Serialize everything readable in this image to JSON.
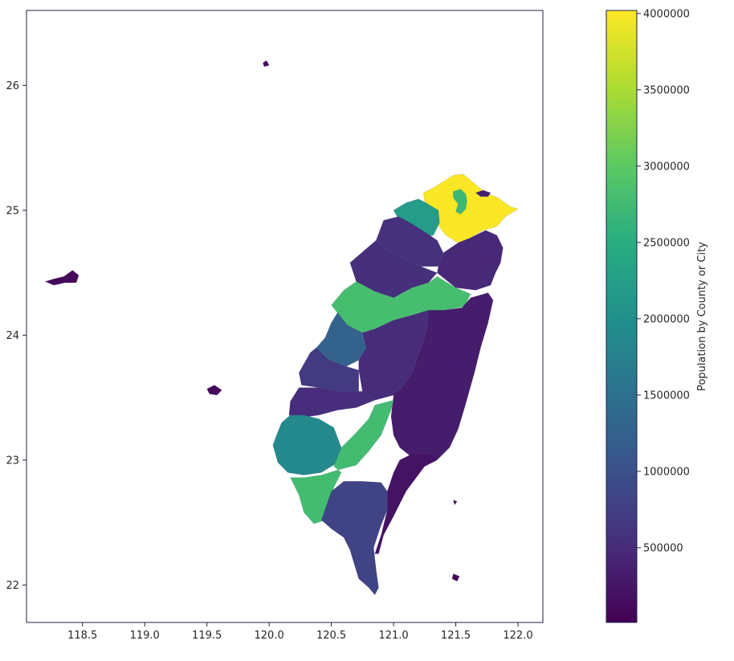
{
  "chart_data": {
    "type": "choropleth",
    "xlim": [
      118.05,
      122.2
    ],
    "ylim": [
      21.7,
      26.6
    ],
    "xticks": [
      "118.5",
      "119.0",
      "119.5",
      "120.0",
      "120.5",
      "121.0",
      "121.5",
      "122.0"
    ],
    "yticks": [
      "22",
      "23",
      "24",
      "25",
      "26"
    ],
    "colorbar": {
      "label": "Population by County or City",
      "range": [
        10000,
        4020000
      ],
      "ticks": [
        "500000",
        "1000000",
        "1500000",
        "2000000",
        "2500000",
        "3000000",
        "3500000",
        "4000000"
      ],
      "colormap": "viridis"
    },
    "regions": [
      {
        "value": 4000000,
        "ring": [
          [
            121.4,
            25.23
          ],
          [
            121.48,
            25.28
          ],
          [
            121.56,
            25.29
          ],
          [
            121.62,
            25.24
          ],
          [
            121.74,
            25.14
          ],
          [
            121.84,
            25.1
          ],
          [
            121.94,
            25.03
          ],
          [
            122.0,
            25.01
          ],
          [
            121.9,
            24.95
          ],
          [
            121.83,
            24.87
          ],
          [
            121.72,
            24.84
          ],
          [
            121.62,
            24.78
          ],
          [
            121.52,
            24.74
          ],
          [
            121.42,
            24.8
          ],
          [
            121.36,
            24.88
          ],
          [
            121.35,
            24.99
          ],
          [
            121.25,
            25.07
          ],
          [
            121.24,
            25.14
          ],
          [
            121.32,
            25.18
          ]
        ]
      },
      {
        "value": 2700000,
        "ring": [
          [
            121.48,
            25.15
          ],
          [
            121.54,
            25.17
          ],
          [
            121.58,
            25.13
          ],
          [
            121.59,
            25.07
          ],
          [
            121.58,
            25.01
          ],
          [
            121.54,
            24.97
          ],
          [
            121.5,
            24.99
          ],
          [
            121.52,
            25.05
          ],
          [
            121.48,
            25.1
          ]
        ]
      },
      {
        "value": 380000,
        "ring": [
          [
            121.66,
            25.14
          ],
          [
            121.72,
            25.16
          ],
          [
            121.78,
            25.14
          ],
          [
            121.76,
            25.11
          ],
          [
            121.7,
            25.11
          ]
        ]
      },
      {
        "value": 2200000,
        "ring": [
          [
            121.0,
            25.0
          ],
          [
            121.1,
            25.06
          ],
          [
            121.2,
            25.09
          ],
          [
            121.26,
            25.06
          ],
          [
            121.36,
            25.0
          ],
          [
            121.37,
            24.9
          ],
          [
            121.32,
            24.8
          ],
          [
            121.26,
            24.79
          ],
          [
            121.15,
            24.87
          ],
          [
            121.04,
            24.93
          ]
        ]
      },
      {
        "value": 560000,
        "ring": [
          [
            120.92,
            24.92
          ],
          [
            121.04,
            24.95
          ],
          [
            121.15,
            24.89
          ],
          [
            121.26,
            24.82
          ],
          [
            121.35,
            24.76
          ],
          [
            121.4,
            24.66
          ],
          [
            121.36,
            24.55
          ],
          [
            121.22,
            24.55
          ],
          [
            121.1,
            24.6
          ],
          [
            120.96,
            24.68
          ],
          [
            120.86,
            24.76
          ]
        ]
      },
      {
        "value": 460000,
        "ring": [
          [
            121.4,
            24.66
          ],
          [
            121.52,
            24.74
          ],
          [
            121.62,
            24.78
          ],
          [
            121.74,
            24.84
          ],
          [
            121.83,
            24.8
          ],
          [
            121.88,
            24.7
          ],
          [
            121.86,
            24.58
          ],
          [
            121.82,
            24.5
          ],
          [
            121.78,
            24.4
          ],
          [
            121.66,
            24.36
          ],
          [
            121.5,
            24.38
          ],
          [
            121.35,
            24.5
          ],
          [
            121.36,
            24.55
          ]
        ]
      },
      {
        "value": 550000,
        "ring": [
          [
            120.65,
            24.58
          ],
          [
            120.86,
            24.76
          ],
          [
            120.96,
            24.68
          ],
          [
            121.1,
            24.6
          ],
          [
            121.22,
            24.55
          ],
          [
            121.35,
            24.5
          ],
          [
            121.28,
            24.42
          ],
          [
            121.15,
            24.38
          ],
          [
            121.0,
            24.3
          ],
          [
            120.85,
            24.35
          ],
          [
            120.7,
            24.43
          ]
        ]
      },
      {
        "value": 2800000,
        "ring": [
          [
            120.5,
            24.24
          ],
          [
            120.6,
            24.36
          ],
          [
            120.7,
            24.43
          ],
          [
            120.85,
            24.35
          ],
          [
            121.0,
            24.3
          ],
          [
            121.15,
            24.38
          ],
          [
            121.28,
            24.42
          ],
          [
            121.35,
            24.47
          ],
          [
            121.5,
            24.38
          ],
          [
            121.62,
            24.33
          ],
          [
            121.57,
            24.23
          ],
          [
            121.4,
            24.2
          ],
          [
            121.15,
            24.16
          ],
          [
            121.0,
            24.12
          ],
          [
            120.85,
            24.05
          ],
          [
            120.75,
            24.02
          ],
          [
            120.63,
            24.08
          ]
        ]
      },
      {
        "value": 1280000,
        "ring": [
          [
            120.45,
            23.98
          ],
          [
            120.5,
            24.1
          ],
          [
            120.55,
            24.18
          ],
          [
            120.63,
            24.08
          ],
          [
            120.75,
            24.02
          ],
          [
            120.78,
            23.9
          ],
          [
            120.72,
            23.8
          ],
          [
            120.62,
            23.75
          ],
          [
            120.48,
            23.8
          ],
          [
            120.38,
            23.9
          ]
        ]
      },
      {
        "value": 500000,
        "ring": [
          [
            120.78,
            23.9
          ],
          [
            120.75,
            24.02
          ],
          [
            120.85,
            24.05
          ],
          [
            121.0,
            24.12
          ],
          [
            121.15,
            24.16
          ],
          [
            121.28,
            24.2
          ],
          [
            121.27,
            24.05
          ],
          [
            121.22,
            23.9
          ],
          [
            121.15,
            23.7
          ],
          [
            121.08,
            23.6
          ],
          [
            121.0,
            23.52
          ],
          [
            120.85,
            23.48
          ],
          [
            120.75,
            23.55
          ],
          [
            120.72,
            23.72
          ],
          [
            120.72,
            23.8
          ]
        ]
      },
      {
        "value": 320000,
        "ring": [
          [
            121.28,
            24.2
          ],
          [
            121.4,
            24.2
          ],
          [
            121.55,
            24.22
          ],
          [
            121.62,
            24.3
          ],
          [
            121.76,
            24.34
          ],
          [
            121.8,
            24.28
          ],
          [
            121.76,
            24.1
          ],
          [
            121.7,
            23.9
          ],
          [
            121.65,
            23.7
          ],
          [
            121.58,
            23.45
          ],
          [
            121.52,
            23.25
          ],
          [
            121.45,
            23.1
          ],
          [
            121.35,
            23.0
          ],
          [
            121.25,
            22.95
          ],
          [
            121.15,
            23.02
          ],
          [
            121.05,
            23.1
          ],
          [
            121.0,
            23.2
          ],
          [
            120.98,
            23.35
          ],
          [
            121.0,
            23.52
          ],
          [
            121.08,
            23.6
          ],
          [
            121.15,
            23.7
          ],
          [
            121.22,
            23.9
          ],
          [
            121.27,
            24.05
          ]
        ]
      },
      {
        "value": 690000,
        "ring": [
          [
            120.24,
            23.7
          ],
          [
            120.33,
            23.86
          ],
          [
            120.38,
            23.9
          ],
          [
            120.48,
            23.8
          ],
          [
            120.62,
            23.75
          ],
          [
            120.72,
            23.72
          ],
          [
            120.72,
            23.55
          ],
          [
            120.55,
            23.55
          ],
          [
            120.4,
            23.58
          ],
          [
            120.26,
            23.6
          ]
        ]
      },
      {
        "value": 510000,
        "ring": [
          [
            120.16,
            23.36
          ],
          [
            120.17,
            23.47
          ],
          [
            120.24,
            23.58
          ],
          [
            120.4,
            23.58
          ],
          [
            120.55,
            23.55
          ],
          [
            120.72,
            23.55
          ],
          [
            120.75,
            23.55
          ],
          [
            120.85,
            23.48
          ],
          [
            120.7,
            23.42
          ],
          [
            120.55,
            23.4
          ],
          [
            120.4,
            23.36
          ],
          [
            120.25,
            23.34
          ]
        ]
      },
      {
        "value": 1880000,
        "ring": [
          [
            120.03,
            23.12
          ],
          [
            120.06,
            23.2
          ],
          [
            120.1,
            23.3
          ],
          [
            120.17,
            23.36
          ],
          [
            120.28,
            23.36
          ],
          [
            120.4,
            23.33
          ],
          [
            120.52,
            23.26
          ],
          [
            120.58,
            23.1
          ],
          [
            120.55,
            22.98
          ],
          [
            120.42,
            22.9
          ],
          [
            120.28,
            22.88
          ],
          [
            120.15,
            22.9
          ],
          [
            120.07,
            22.98
          ]
        ]
      },
      {
        "value": 2770000,
        "ring": [
          [
            120.17,
            22.86
          ],
          [
            120.24,
            22.72
          ],
          [
            120.28,
            22.58
          ],
          [
            120.36,
            22.49
          ],
          [
            120.45,
            22.52
          ],
          [
            120.48,
            22.65
          ],
          [
            120.52,
            22.78
          ],
          [
            120.58,
            22.9
          ],
          [
            120.52,
            22.95
          ],
          [
            120.58,
            23.1
          ],
          [
            120.7,
            23.22
          ],
          [
            120.8,
            23.33
          ],
          [
            120.85,
            23.44
          ],
          [
            121.0,
            23.48
          ],
          [
            120.98,
            23.4
          ],
          [
            120.94,
            23.3
          ],
          [
            120.9,
            23.2
          ],
          [
            120.8,
            23.07
          ],
          [
            120.7,
            22.96
          ],
          [
            120.55,
            22.92
          ],
          [
            120.42,
            22.88
          ],
          [
            120.28,
            22.86
          ]
        ]
      },
      {
        "value": 820000,
        "ring": [
          [
            120.42,
            22.52
          ],
          [
            120.5,
            22.45
          ],
          [
            120.6,
            22.38
          ],
          [
            120.65,
            22.28
          ],
          [
            120.68,
            22.18
          ],
          [
            120.72,
            22.05
          ],
          [
            120.8,
            21.98
          ],
          [
            120.85,
            21.92
          ],
          [
            120.88,
            21.98
          ],
          [
            120.86,
            22.12
          ],
          [
            120.84,
            22.3
          ],
          [
            120.9,
            22.48
          ],
          [
            120.95,
            22.6
          ],
          [
            120.95,
            22.75
          ],
          [
            120.9,
            22.82
          ],
          [
            120.75,
            22.83
          ],
          [
            120.6,
            22.83
          ],
          [
            120.5,
            22.75
          ]
        ]
      },
      {
        "value": 220000,
        "ring": [
          [
            120.95,
            22.75
          ],
          [
            120.95,
            22.6
          ],
          [
            120.9,
            22.4
          ],
          [
            120.85,
            22.25
          ],
          [
            120.88,
            22.25
          ],
          [
            120.92,
            22.4
          ],
          [
            121.0,
            22.55
          ],
          [
            121.1,
            22.75
          ],
          [
            121.25,
            22.95
          ],
          [
            121.35,
            23.0
          ],
          [
            121.3,
            23.05
          ],
          [
            121.15,
            23.05
          ],
          [
            121.05,
            23.0
          ],
          [
            121.0,
            22.9
          ]
        ]
      },
      {
        "value": 100000,
        "ring": [
          [
            118.2,
            24.43
          ],
          [
            118.27,
            24.45
          ],
          [
            118.35,
            24.47
          ],
          [
            118.42,
            24.52
          ],
          [
            118.47,
            24.48
          ],
          [
            118.45,
            24.42
          ],
          [
            118.36,
            24.42
          ],
          [
            118.27,
            24.4
          ]
        ]
      },
      {
        "value": 100000,
        "ring": [
          [
            119.5,
            23.57
          ],
          [
            119.56,
            23.6
          ],
          [
            119.62,
            23.56
          ],
          [
            119.58,
            23.52
          ],
          [
            119.52,
            23.53
          ]
        ]
      },
      {
        "value": 100000,
        "ring": [
          [
            119.95,
            26.18
          ],
          [
            119.98,
            26.2
          ],
          [
            120.0,
            26.16
          ],
          [
            119.96,
            26.15
          ]
        ]
      },
      {
        "value": 100000,
        "ring": [
          [
            121.48,
            22.09
          ],
          [
            121.53,
            22.07
          ],
          [
            121.51,
            22.03
          ],
          [
            121.47,
            22.05
          ]
        ]
      },
      {
        "value": 100000,
        "ring": [
          [
            121.48,
            22.68
          ],
          [
            121.51,
            22.67
          ],
          [
            121.49,
            22.64
          ]
        ]
      }
    ]
  }
}
